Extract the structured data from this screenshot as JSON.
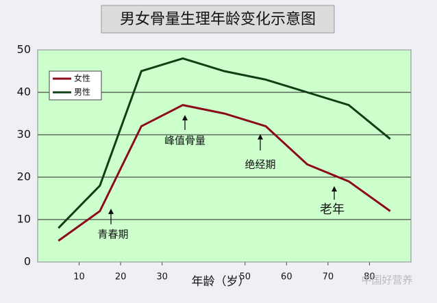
{
  "chart_data": {
    "type": "line",
    "title": "男女骨量生理年龄变化示意图",
    "x_label": "年龄（岁）",
    "x": [
      5,
      15,
      25,
      35,
      45,
      55,
      65,
      75,
      85
    ],
    "series": [
      {
        "name": "女性",
        "color": "#8b0a1a",
        "values": [
          5,
          12,
          32,
          37,
          35,
          32,
          23,
          19,
          12
        ]
      },
      {
        "name": "男性",
        "color": "#0f3d14",
        "values": [
          8,
          18,
          45,
          48,
          45,
          43,
          40,
          37,
          29
        ]
      }
    ],
    "xlim": [
      0,
      90
    ],
    "xticks": [
      10,
      20,
      30,
      50,
      60,
      70,
      80
    ],
    "ylim": [
      0,
      50
    ],
    "yticks": [
      0,
      10,
      20,
      30,
      40,
      50
    ],
    "grid": true,
    "legend": "upper left",
    "annotations": [
      "峰值骨量",
      "绝经期",
      "青春期",
      "老年"
    ],
    "watermark": "中国好营养"
  }
}
